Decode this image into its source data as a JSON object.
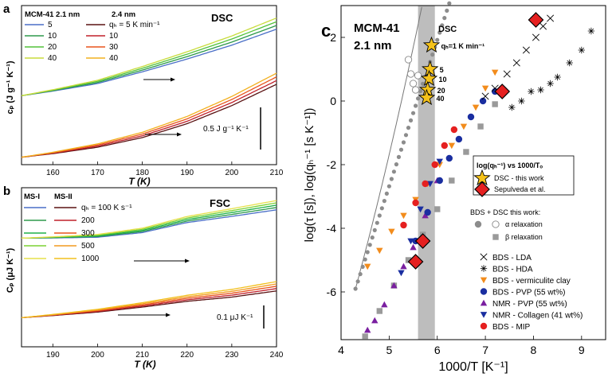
{
  "panels": {
    "a": {
      "letter": "a",
      "label": "DSC",
      "xlabel": "T (K)",
      "ylabel": "cₚ (J g⁻¹ K⁻¹)",
      "scalebar": "0.5 J g⁻¹ K⁻¹"
    },
    "b": {
      "letter": "b",
      "label": "FSC",
      "xlabel": "T (K)",
      "ylabel": "Cₚ (μJ K⁻¹)",
      "scalebar": "0.1 μJ K⁻¹"
    },
    "c": {
      "letter": "c",
      "material": "MCM-41",
      "pore": "2.1 nm",
      "band_label": "DSC",
      "xlabel": "1000/T [K⁻¹]",
      "ylabel": "log(τ [s]), log(qₕ⁻¹ [s K⁻¹])"
    }
  },
  "legend_a": {
    "header_left": "MCM-41  2.1 nm",
    "header_right": "2.4 nm",
    "left": [
      "5",
      "10",
      "20",
      "40"
    ],
    "right": [
      "qₕ = 5 K min⁻¹",
      "10",
      "30",
      "40"
    ]
  },
  "legend_b": {
    "header_left": "MS-I",
    "header_right": "MS-II",
    "right": [
      "qₕ = 100 K s⁻¹",
      "200",
      "300",
      "500",
      "1000"
    ]
  },
  "star_labels": [
    "qₕ=1 K min⁻¹",
    "5",
    "10",
    "20",
    "40"
  ],
  "legend_c": {
    "box_title": "log(qₕ⁻¹) vs 1000/Tₒ",
    "box_items": [
      "DSC - this work",
      "Sepulveda et al."
    ],
    "bds_title": "BDS + DSC this work:",
    "bds_items": [
      "α relaxation",
      "β relaxation"
    ],
    "items": [
      "BDS - LDA",
      "BDS - HDA",
      "BDS - vermiculite clay",
      "BDS - PVP (55 wt%)",
      "NMR - PVP (55 wt%)",
      "NMR - Collagen (41 wt%)",
      "BDS - MIP"
    ]
  },
  "chart_data": [
    {
      "type": "line",
      "panel": "a",
      "xlabel": "T (K)",
      "xlim": [
        153,
        210
      ],
      "x_ticks": [
        160,
        170,
        180,
        190,
        200,
        210
      ],
      "series_group_1": {
        "name": "2.1 nm",
        "rates": [
          5,
          10,
          20,
          40
        ],
        "colors": [
          "#4a6fc7",
          "#2e9a4b",
          "#52c23a",
          "#c8dc3c"
        ],
        "x": [
          153,
          160,
          170,
          180,
          190,
          200,
          210
        ],
        "values": [
          0.0,
          0.05,
          0.13,
          0.25,
          0.38,
          0.52,
          0.68
        ]
      },
      "series_group_2": {
        "name": "2.4 nm",
        "rates": [
          5,
          10,
          30,
          40
        ],
        "colors": [
          "#5a1212",
          "#c0202a",
          "#e8541c",
          "#f2b01e"
        ],
        "x": [
          153,
          160,
          170,
          180,
          190,
          200,
          210
        ],
        "values": [
          -0.58,
          -0.54,
          -0.47,
          -0.37,
          -0.23,
          -0.05,
          0.16
        ]
      }
    },
    {
      "type": "line",
      "panel": "b",
      "xlabel": "T (K)",
      "xlim": [
        183,
        240
      ],
      "x_ticks": [
        190,
        200,
        210,
        220,
        230,
        240
      ],
      "series_group_1": {
        "name": "MS-I",
        "rates": [
          100,
          200,
          300,
          500,
          1000
        ],
        "colors": [
          "#4a6fc7",
          "#2e9a4b",
          "#1fb04a",
          "#7bd233",
          "#e6e04a"
        ],
        "x": [
          183,
          190,
          200,
          210,
          220,
          230,
          240
        ],
        "values": [
          0.0,
          0.002,
          0.006,
          0.02,
          0.048,
          0.066,
          0.085
        ]
      },
      "series_group_2": {
        "name": "MS-II",
        "rates": [
          100,
          200,
          300,
          500,
          1000
        ],
        "colors": [
          "#5a1212",
          "#c0202a",
          "#e8541c",
          "#f29a1e",
          "#f2c01e"
        ],
        "x": [
          183,
          190,
          200,
          210,
          220,
          230,
          240
        ],
        "values": [
          -0.205,
          -0.198,
          -0.187,
          -0.172,
          -0.155,
          -0.142,
          -0.124
        ]
      }
    },
    {
      "type": "scatter",
      "panel": "c",
      "xlabel": "1000/T [K⁻¹]",
      "xlim": [
        4,
        9.5
      ],
      "ylim": [
        -7.5,
        3
      ],
      "x_ticks": [
        4,
        5,
        6,
        7,
        8,
        9
      ],
      "y_ticks": [
        -6,
        -4,
        -2,
        0,
        2
      ],
      "dsc_band": [
        5.6,
        5.95
      ],
      "series": [
        {
          "name": "DSC - this work",
          "marker": "star",
          "color": "#f5c21a",
          "x": [
            5.88,
            5.85,
            5.83,
            5.8,
            5.78
          ],
          "y": [
            1.75,
            1.0,
            0.7,
            0.35,
            0.1
          ]
        },
        {
          "name": "Sepulveda et al.",
          "marker": "diamond",
          "color": "#e52020",
          "x": [
            8.05,
            7.35,
            5.7,
            5.55
          ],
          "y": [
            2.55,
            0.3,
            -4.4,
            -5.05
          ]
        },
        {
          "name": "α relaxation",
          "marker": "open-circle",
          "color": "#888888",
          "x": [
            5.4,
            5.45,
            5.5,
            5.55,
            5.6
          ],
          "y": [
            1.3,
            0.85,
            0.55,
            0.35,
            0.8
          ]
        },
        {
          "name": "BDS - LDA",
          "marker": "x",
          "color": "#000000",
          "x": [
            7.0,
            7.2,
            7.45,
            7.65,
            7.85,
            8.05,
            8.2,
            8.35
          ],
          "y": [
            0.15,
            0.4,
            0.85,
            1.2,
            1.6,
            2.0,
            2.35,
            2.6
          ]
        },
        {
          "name": "BDS - HDA",
          "marker": "asterisk",
          "color": "#000000",
          "x": [
            7.55,
            7.75,
            7.95,
            8.15,
            8.35,
            8.5,
            8.75,
            9.0,
            9.2
          ],
          "y": [
            -0.2,
            0.0,
            0.3,
            0.35,
            0.55,
            0.75,
            1.2,
            1.6,
            2.2
          ]
        },
        {
          "name": "BDS - vermiculite clay",
          "marker": "triangle-down",
          "color": "#f28c1c",
          "x": [
            4.55,
            4.8,
            5.05,
            5.3,
            5.55,
            5.8,
            6.05,
            6.3,
            6.55,
            6.8,
            7.0,
            7.2
          ],
          "y": [
            -5.2,
            -4.7,
            -4.1,
            -3.6,
            -3.1,
            -2.6,
            -2.0,
            -1.4,
            -0.8,
            -0.2,
            0.4,
            0.9
          ]
        },
        {
          "name": "BDS - PVP (55 wt%)",
          "marker": "circle",
          "color": "#1a2ea0",
          "x": [
            5.55,
            5.8,
            6.05,
            6.25,
            6.45,
            6.7,
            6.95,
            7.2
          ],
          "y": [
            -4.4,
            -3.5,
            -2.5,
            -1.8,
            -1.2,
            -0.5,
            0.0,
            0.3
          ]
        },
        {
          "name": "NMR - PVP (55 wt%)",
          "marker": "triangle-up",
          "color": "#7a1fa0",
          "x": [
            4.55,
            4.7,
            4.9,
            5.1,
            5.3,
            5.5,
            5.75,
            6.0
          ],
          "y": [
            -7.2,
            -6.9,
            -6.4,
            -5.8,
            -5.2,
            -4.6,
            -3.6,
            -2.5
          ]
        },
        {
          "name": "NMR - Collagen (41 wt%)",
          "marker": "triangle-down",
          "color": "#1a2ea0",
          "x": [
            5.25,
            5.45,
            5.65,
            5.85,
            6.05
          ],
          "y": [
            -5.4,
            -4.4,
            -3.4,
            -2.6,
            -1.9
          ]
        },
        {
          "name": "BDS - MIP",
          "marker": "circle",
          "color": "#e52020",
          "x": [
            5.3,
            5.55,
            5.75,
            5.95,
            6.15,
            6.35
          ],
          "y": [
            -3.9,
            -3.2,
            -2.6,
            -2.0,
            -1.4,
            -0.9
          ]
        },
        {
          "name": "β relaxation",
          "marker": "square",
          "color": "#9a9a9a",
          "x": [
            4.5,
            4.8,
            5.1,
            5.4,
            5.7,
            6.0,
            6.3,
            6.6,
            6.9,
            7.2
          ],
          "y": [
            -7.4,
            -6.6,
            -5.8,
            -5.0,
            -4.2,
            -3.4,
            -2.5,
            -1.6,
            -0.8,
            -0.1
          ]
        }
      ]
    }
  ]
}
